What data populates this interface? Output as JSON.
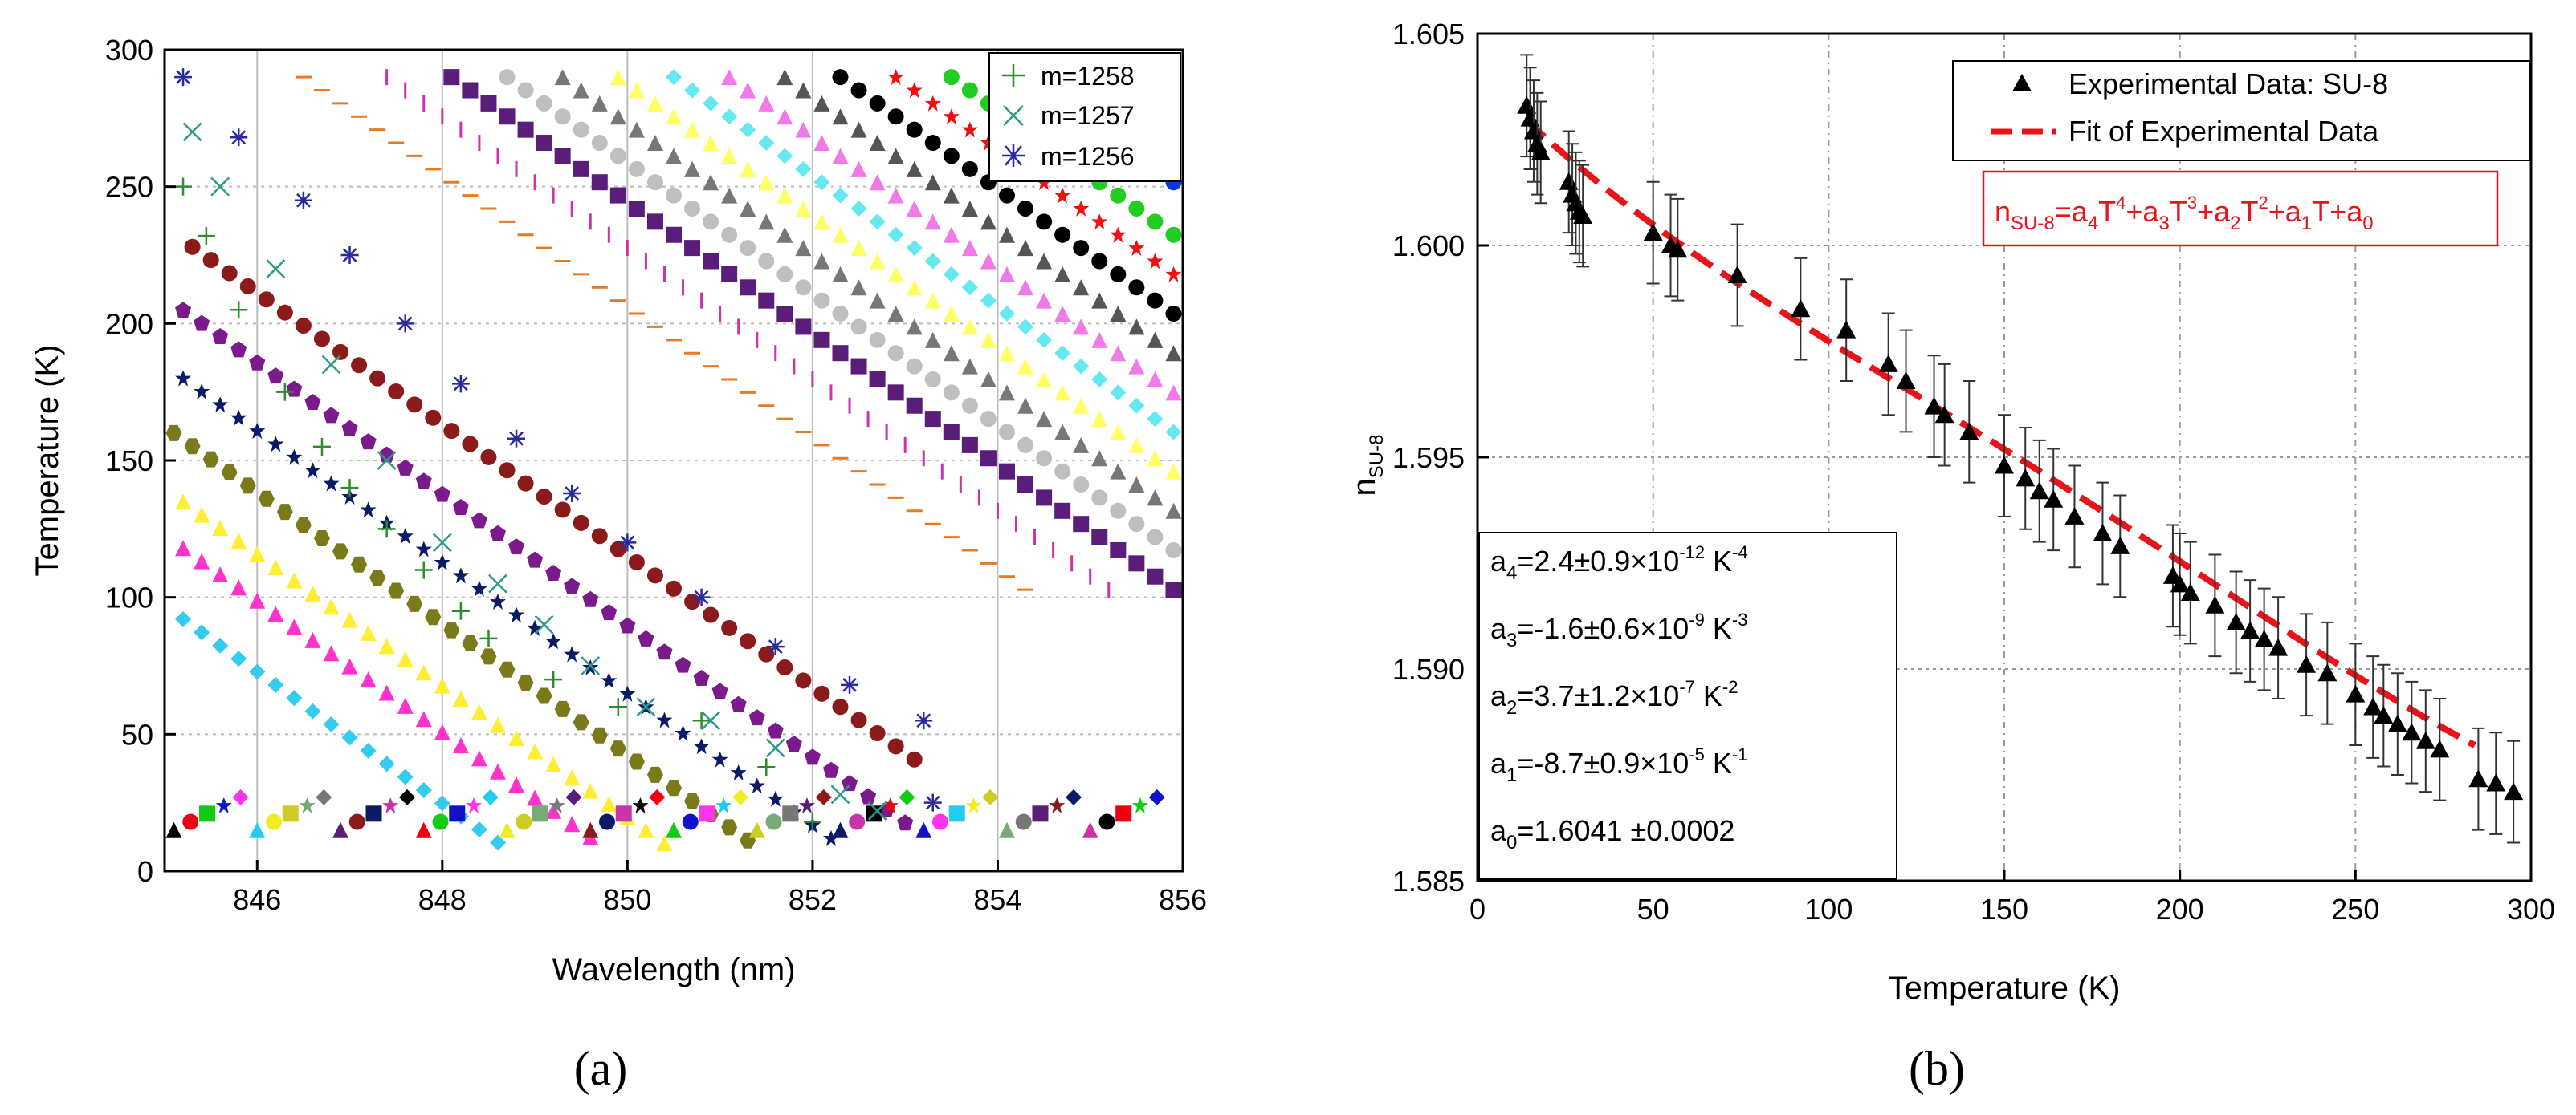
{
  "chart_data": [
    {
      "type": "scatter",
      "panel": "(a)",
      "xlabel": "Wavelength (nm)",
      "ylabel": "Temperature (K)",
      "xlim": [
        845,
        856
      ],
      "ylim": [
        0,
        300
      ],
      "xticks": [
        846,
        848,
        850,
        852,
        854,
        856
      ],
      "yticks": [
        0,
        50,
        100,
        150,
        200,
        250,
        300
      ],
      "legend": [
        "m=1258",
        "m=1257",
        "m=1256"
      ],
      "legend_position": "top-right",
      "grid": true,
      "series": [
        {
          "name": "m=1258",
          "color": "#2e8b2e",
          "values": [
            [
              845.2,
              250
            ],
            [
              845.45,
              232
            ],
            [
              845.8,
              205
            ],
            [
              846.3,
              175
            ],
            [
              846.7,
              155
            ],
            [
              847,
              140
            ],
            [
              847.4,
              125
            ],
            [
              847.8,
              110
            ],
            [
              848.2,
              95
            ],
            [
              848.5,
              85
            ],
            [
              849.2,
              70
            ],
            [
              849.9,
              60
            ],
            [
              850.8,
              55
            ],
            [
              851.5,
              38
            ],
            [
              852,
              18
            ]
          ]
        },
        {
          "name": "m=1257",
          "color": "#2e9a8a",
          "values": [
            [
              845.3,
              270
            ],
            [
              845.6,
              250
            ],
            [
              846.2,
              220
            ],
            [
              846.8,
              185
            ],
            [
              847.4,
              150
            ],
            [
              848,
              120
            ],
            [
              848.6,
              105
            ],
            [
              849.1,
              90
            ],
            [
              849.6,
              75
            ],
            [
              850.2,
              60
            ],
            [
              850.9,
              55
            ],
            [
              851.6,
              45
            ],
            [
              852.3,
              28
            ],
            [
              852.7,
              22
            ]
          ]
        },
        {
          "name": "m=1256",
          "color": "#2a2a9e",
          "values": [
            [
              845.2,
              290
            ],
            [
              845.8,
              268
            ],
            [
              846.5,
              245
            ],
            [
              847,
              225
            ],
            [
              847.6,
              200
            ],
            [
              848.2,
              178
            ],
            [
              848.8,
              158
            ],
            [
              849.4,
              138
            ],
            [
              850,
              120
            ],
            [
              850.8,
              100
            ],
            [
              851.6,
              82
            ],
            [
              852.4,
              68
            ],
            [
              853.2,
              55
            ],
            [
              853.3,
              25
            ]
          ]
        }
      ]
    },
    {
      "type": "scatter",
      "panel": "(b)",
      "xlabel": "Temperature (K)",
      "ylabel": "nSU-8",
      "ylabel_main": "n",
      "ylabel_sub": "SU-8",
      "xlim": [
        0,
        300
      ],
      "ylim": [
        1.585,
        1.605
      ],
      "xticks": [
        0,
        50,
        100,
        150,
        200,
        250,
        300
      ],
      "yticks": [
        1.585,
        1.59,
        1.595,
        1.6,
        1.605
      ],
      "legend": [
        "Experimental Data: SU-8",
        "Fit of Experimental Data"
      ],
      "legend_position": "top-right",
      "grid": true,
      "equation": {
        "n": "n",
        "sub": "SU-8",
        "eq": "=",
        "a": "a",
        "T": "T",
        "plus": "+",
        "s4": "4",
        "s3": "3",
        "s2": "2",
        "s1": "1",
        "s0": "0"
      },
      "fit_params": [
        {
          "a": "a",
          "sub": "4",
          "value": "=2.4±0.9×10",
          "exp": "-12",
          "unit": " K",
          "unit_exp": "-4"
        },
        {
          "a": "a",
          "sub": "3",
          "value": "=-1.6±0.6×10",
          "exp": "-9",
          "unit": " K",
          "unit_exp": "-3"
        },
        {
          "a": "a",
          "sub": "2",
          "value": "=3.7±1.2×10",
          "exp": "-7",
          "unit": " K",
          "unit_exp": "-2"
        },
        {
          "a": "a",
          "sub": "1",
          "value": "=-8.7±0.9×10",
          "exp": "-5",
          "unit": " K",
          "unit_exp": "-1"
        },
        {
          "a": "a",
          "sub": "0",
          "value": "=1.6041 ±0.0002",
          "exp": "",
          "unit": "",
          "unit_exp": ""
        }
      ],
      "fit_coefficients": {
        "a4": 2.4e-12,
        "a3": -1.6e-09,
        "a2": 3.7e-07,
        "a1": -8.7e-05,
        "a0": 1.6041
      },
      "error_bar": 0.0012,
      "series": [
        {
          "name": "Experimental Data: SU-8",
          "x": [
            14,
            15,
            16,
            17,
            18,
            26,
            27,
            28,
            29,
            30,
            50,
            55,
            57,
            74,
            92,
            105,
            117,
            122,
            130,
            133,
            140,
            150,
            156,
            160,
            164,
            170,
            178,
            183,
            198,
            200,
            203,
            210,
            216,
            220,
            224,
            228,
            236,
            242,
            250,
            255,
            258,
            262,
            266,
            270,
            274,
            285,
            290,
            295
          ],
          "y": [
            1.6033,
            1.603,
            1.6027,
            1.6024,
            1.6022,
            1.6015,
            1.6012,
            1.601,
            1.6008,
            1.6007,
            1.6003,
            1.6,
            1.5999,
            1.5993,
            1.5985,
            1.598,
            1.5972,
            1.5968,
            1.5962,
            1.596,
            1.5956,
            1.5948,
            1.5945,
            1.5942,
            1.594,
            1.5936,
            1.5932,
            1.5929,
            1.5922,
            1.592,
            1.5918,
            1.5915,
            1.5911,
            1.5909,
            1.5907,
            1.5905,
            1.5901,
            1.5899,
            1.5894,
            1.5891,
            1.5889,
            1.5887,
            1.5885,
            1.5883,
            1.5881,
            1.5874,
            1.5873,
            1.5871
          ]
        }
      ]
    }
  ],
  "captions": {
    "a": "(a)",
    "b": "(b)"
  }
}
